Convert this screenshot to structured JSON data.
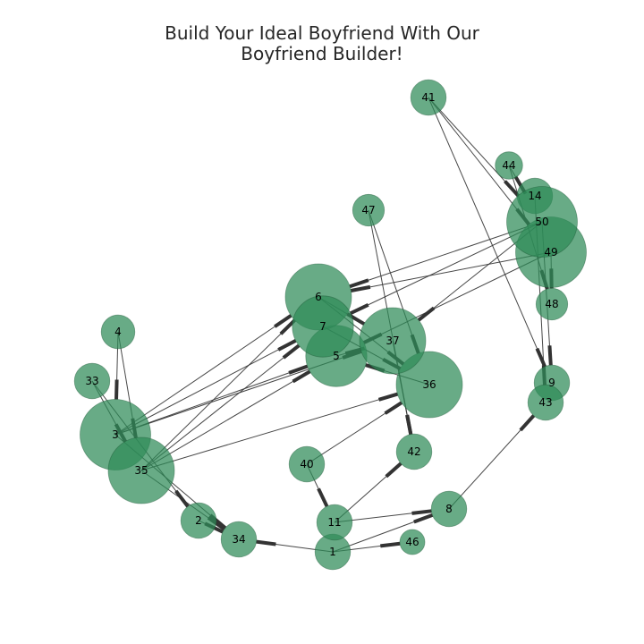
{
  "title_lines": [
    "Build Your Ideal Boyfriend With Our",
    "Boyfriend Builder!"
  ],
  "colors": {
    "node_fill": "#2e8b57",
    "node_edge": "#1f5e3a",
    "edge": "#333333",
    "title": "#262626"
  },
  "chart_data": {
    "type": "network",
    "directed": true,
    "nodes": [
      {
        "id": "1",
        "size": 1
      },
      {
        "id": "2",
        "size": 1
      },
      {
        "id": "3",
        "size": 4
      },
      {
        "id": "4",
        "size": 0.9
      },
      {
        "id": "5",
        "size": 3
      },
      {
        "id": "6",
        "size": 3.5
      },
      {
        "id": "7",
        "size": 3
      },
      {
        "id": "8",
        "size": 1
      },
      {
        "id": "9",
        "size": 1
      },
      {
        "id": "11",
        "size": 1
      },
      {
        "id": "14",
        "size": 1
      },
      {
        "id": "33",
        "size": 1
      },
      {
        "id": "34",
        "size": 1
      },
      {
        "id": "35",
        "size": 3.5
      },
      {
        "id": "36",
        "size": 3.5
      },
      {
        "id": "37",
        "size": 3.5
      },
      {
        "id": "40",
        "size": 1
      },
      {
        "id": "41",
        "size": 1
      },
      {
        "id": "42",
        "size": 1
      },
      {
        "id": "43",
        "size": 1
      },
      {
        "id": "44",
        "size": 0.6
      },
      {
        "id": "46",
        "size": 0.5
      },
      {
        "id": "47",
        "size": 0.8
      },
      {
        "id": "48",
        "size": 0.8
      },
      {
        "id": "49",
        "size": 4
      },
      {
        "id": "50",
        "size": 4
      }
    ],
    "edges": [
      [
        "41",
        "50"
      ],
      [
        "41",
        "49"
      ],
      [
        "41",
        "9"
      ],
      [
        "44",
        "50"
      ],
      [
        "44",
        "48"
      ],
      [
        "14",
        "43"
      ],
      [
        "50",
        "9"
      ],
      [
        "49",
        "48"
      ],
      [
        "50",
        "6"
      ],
      [
        "50",
        "7"
      ],
      [
        "49",
        "6"
      ],
      [
        "49",
        "5"
      ],
      [
        "50",
        "37"
      ],
      [
        "3",
        "6"
      ],
      [
        "3",
        "7"
      ],
      [
        "35",
        "6"
      ],
      [
        "35",
        "5"
      ],
      [
        "3",
        "5"
      ],
      [
        "35",
        "7"
      ],
      [
        "3",
        "37"
      ],
      [
        "35",
        "36"
      ],
      [
        "33",
        "2"
      ],
      [
        "33",
        "35"
      ],
      [
        "3",
        "34"
      ],
      [
        "35",
        "34"
      ],
      [
        "4",
        "3"
      ],
      [
        "4",
        "35"
      ],
      [
        "47",
        "36"
      ],
      [
        "47",
        "42"
      ],
      [
        "6",
        "36"
      ],
      [
        "7",
        "36"
      ],
      [
        "5",
        "37"
      ],
      [
        "6",
        "37"
      ],
      [
        "40",
        "36"
      ],
      [
        "40",
        "11"
      ],
      [
        "11",
        "42"
      ],
      [
        "11",
        "8"
      ],
      [
        "1",
        "8"
      ],
      [
        "1",
        "46"
      ],
      [
        "1",
        "34"
      ],
      [
        "2",
        "34"
      ],
      [
        "8",
        "43"
      ],
      [
        "37",
        "42"
      ],
      [
        "36",
        "5"
      ]
    ]
  }
}
